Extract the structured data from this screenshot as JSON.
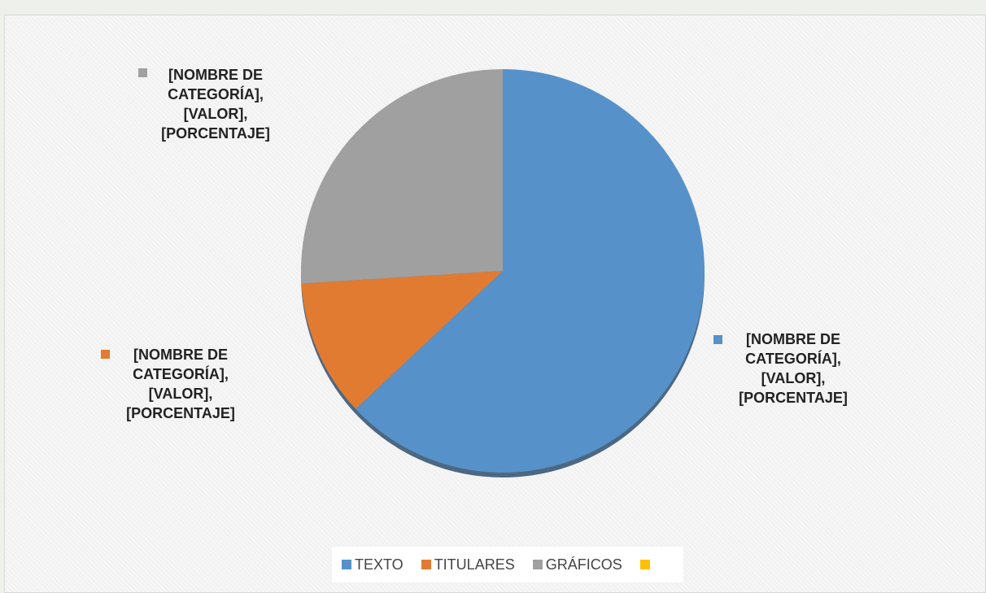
{
  "chart_data": {
    "type": "pie",
    "categories": [
      "TEXTO",
      "TITULARES",
      "GRÁFICOS",
      null
    ],
    "values": [
      63,
      11,
      26,
      0
    ],
    "colors": [
      "#5692c9",
      "#e07b31",
      "#a0a0a0",
      "#ffc000"
    ],
    "value_labels": [
      "[NOMBRE DE CATEGORÍA], [VALOR], [PORCENTAJE]",
      "[NOMBRE DE CATEGORÍA], [VALOR], [PORCENTAJE]",
      "[NOMBRE DE CATEGORÍA], [VALOR], [PORCENTAJE]",
      null
    ],
    "legend": "bottom"
  }
}
